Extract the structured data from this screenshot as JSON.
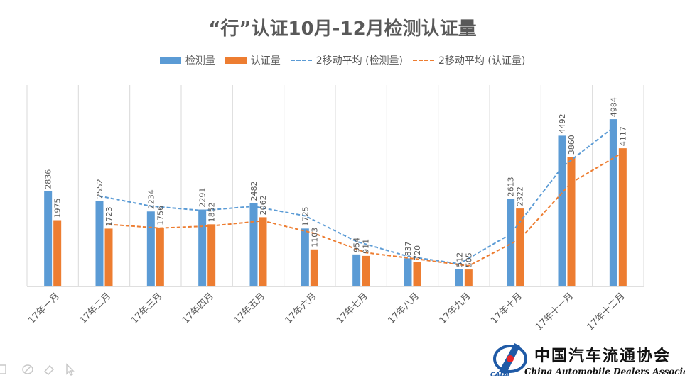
{
  "chart_data": {
    "type": "bar",
    "title": "“行”认证10月-12月检测认证量",
    "categories": [
      "17年一月",
      "17年二月",
      "17年三月",
      "17年四月",
      "17年五月",
      "17年六月",
      "17年七月",
      "17年八月",
      "17年九月",
      "17年十月",
      "17年十一月",
      "17年十二月"
    ],
    "series": [
      {
        "name": "检测量",
        "type": "bar",
        "color": "#5B9BD5",
        "values": [
          2836,
          2552,
          2234,
          2291,
          2482,
          1725,
          954,
          837,
          512,
          2613,
          4492,
          4984
        ]
      },
      {
        "name": "认证量",
        "type": "bar",
        "color": "#ED7D31",
        "values": [
          1975,
          1723,
          1756,
          1852,
          2062,
          1103,
          911,
          720,
          505,
          2322,
          3860,
          4117
        ]
      },
      {
        "name": "2移动平均 (检测量)",
        "type": "line-dashed",
        "color": "#5B9BD5",
        "period": 2
      },
      {
        "name": "2移动平均 (认证量)",
        "type": "line-dashed",
        "color": "#ED7D31",
        "period": 2
      }
    ],
    "ylim": [
      0,
      6000
    ],
    "grid": "vertical",
    "legend": "top",
    "xlabel": "",
    "ylabel": ""
  },
  "logo": {
    "name_cn": "中国汽车流通协会",
    "name_en": "China Automobile Dealers Association",
    "abbr": "CADA"
  },
  "toolbar": {
    "icons": [
      "grid-icon",
      "pen-icon",
      "eraser-icon",
      "pointer-icon"
    ]
  }
}
